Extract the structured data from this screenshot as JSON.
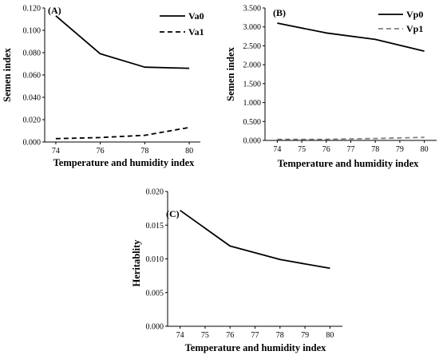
{
  "chart_data": [
    {
      "type": "line",
      "panel_label": "(A)",
      "xlabel": "Temperature and humidity index",
      "ylabel": "Semen index",
      "xlim": [
        73.5,
        80.5
      ],
      "ylim": [
        0,
        0.12
      ],
      "x_ticks": [
        74,
        76,
        78,
        80
      ],
      "y_ticks": [
        "0.000",
        "0.020",
        "0.040",
        "0.060",
        "0.080",
        "0.100",
        "0.120"
      ],
      "legend_position": "top-right",
      "series": [
        {
          "name": "Va0",
          "color": "#000000",
          "dash": "solid",
          "x": [
            74,
            76,
            78,
            80
          ],
          "y": [
            0.113,
            0.079,
            0.067,
            0.066
          ]
        },
        {
          "name": "Va1",
          "color": "#000000",
          "dash": "dashed",
          "x": [
            74,
            76,
            78,
            80
          ],
          "y": [
            0.003,
            0.004,
            0.006,
            0.013
          ]
        }
      ]
    },
    {
      "type": "line",
      "panel_label": "(B)",
      "xlabel": "Temperature and humidity index",
      "ylabel": "Semen index",
      "xlim": [
        73.5,
        80.5
      ],
      "ylim": [
        0,
        3.5
      ],
      "x_ticks": [
        74,
        75,
        76,
        77,
        78,
        79,
        80
      ],
      "y_ticks": [
        "0.000",
        "0.500",
        "1.000",
        "1.500",
        "2.000",
        "2.500",
        "3.000",
        "3.500"
      ],
      "legend_position": "top-right",
      "series": [
        {
          "name": "Vp0",
          "color": "#000000",
          "dash": "solid",
          "x": [
            74,
            76,
            78,
            80
          ],
          "y": [
            3.1,
            2.84,
            2.67,
            2.36
          ]
        },
        {
          "name": "Vp1",
          "color": "#808080",
          "dash": "dashed",
          "x": [
            74,
            76,
            78,
            80
          ],
          "y": [
            0.03,
            0.03,
            0.05,
            0.08
          ]
        }
      ]
    },
    {
      "type": "line",
      "panel_label": "(C)",
      "xlabel": "Temperature and humidity index",
      "ylabel": "Heritablity",
      "xlim": [
        73.5,
        80.5
      ],
      "ylim": [
        0,
        0.02
      ],
      "x_ticks": [
        74,
        75,
        76,
        77,
        78,
        79,
        80
      ],
      "y_ticks": [
        "0.000",
        "0.005",
        "0.010",
        "0.015",
        "0.020"
      ],
      "legend_position": "none",
      "series": [
        {
          "color": "#000000",
          "dash": "solid",
          "x": [
            74,
            76,
            78,
            80
          ],
          "y": [
            0.0172,
            0.0119,
            0.0099,
            0.0086
          ]
        }
      ]
    }
  ]
}
